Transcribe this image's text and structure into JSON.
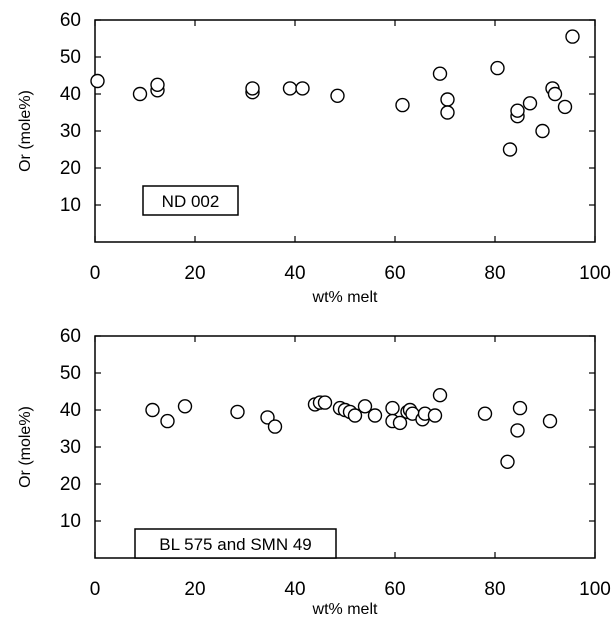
{
  "chart_data": [
    {
      "type": "scatter",
      "annotation": "ND 002",
      "xlabel": "wt% melt",
      "ylabel": "Or (mole%)",
      "xlim": [
        0,
        100
      ],
      "ylim": [
        0,
        60
      ],
      "xticks": [
        "0",
        "20",
        "40",
        "60",
        "80",
        "100"
      ],
      "yticks": [
        "10",
        "20",
        "30",
        "40",
        "50",
        "60"
      ],
      "grid": false,
      "marker": "open-circle",
      "x": [
        0.5,
        9,
        12.5,
        12.5,
        31.5,
        31.5,
        39,
        41.5,
        48.5,
        61.5,
        69,
        70.5,
        70.5,
        80.5,
        83,
        84.5,
        84.5,
        87,
        89.5,
        91.5,
        92,
        94,
        95.5
      ],
      "y": [
        43.5,
        40,
        41,
        42.5,
        40.5,
        41.5,
        41.5,
        41.5,
        39.5,
        37,
        45.5,
        38.5,
        35,
        47,
        25,
        34,
        35.5,
        37.5,
        30,
        41.5,
        40,
        36.5,
        55.5
      ]
    },
    {
      "type": "scatter",
      "annotation": "BL 575 and SMN 49",
      "xlabel": "wt% melt",
      "ylabel": "Or (mole%)",
      "xlim": [
        0,
        100
      ],
      "ylim": [
        0,
        60
      ],
      "xticks": [
        "0",
        "20",
        "40",
        "60",
        "80",
        "100"
      ],
      "yticks": [
        "10",
        "20",
        "30",
        "40",
        "50",
        "60"
      ],
      "grid": false,
      "marker": "open-circle",
      "x": [
        11.5,
        14.5,
        18,
        28.5,
        34.5,
        36,
        44,
        45,
        46,
        49,
        50,
        51,
        52,
        54,
        56,
        59.5,
        59.5,
        61,
        62.5,
        63,
        63.5,
        65.5,
        66,
        68,
        69,
        78,
        82.5,
        84.5,
        85,
        91
      ],
      "y": [
        40,
        37,
        41,
        39.5,
        38,
        35.5,
        41.5,
        42,
        42,
        40.5,
        40,
        39.5,
        38.5,
        41,
        38.5,
        40.5,
        37,
        36.5,
        39.5,
        40,
        39,
        37.5,
        39,
        38.5,
        44,
        39,
        26,
        34.5,
        40.5,
        37
      ]
    }
  ]
}
